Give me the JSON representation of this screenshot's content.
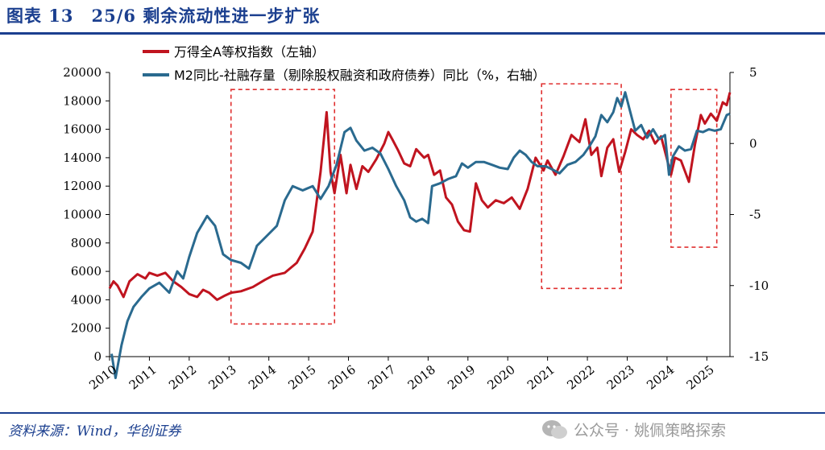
{
  "header": {
    "figure_title": "图表 13　25/6 剩余流动性进一步扩张"
  },
  "footer": {
    "source": "资料来源：Wind，华创证券",
    "watermark": "公众号 · 姚佩策略探索"
  },
  "colors": {
    "brand": "#1b3f8f",
    "wind_a": "#c0141f",
    "m2_tsf": "#2a6a8f",
    "highlight": "#e03030"
  },
  "icons": {
    "watermark_icon": "wechat-icon"
  },
  "chart_data": {
    "type": "line",
    "x_ticks": [
      "2010",
      "2011",
      "2012",
      "2013",
      "2014",
      "2015",
      "2016",
      "2017",
      "2018",
      "2019",
      "2020",
      "2021",
      "2022",
      "2023",
      "2024",
      "2025"
    ],
    "x_range": [
      2010.0,
      2025.58
    ],
    "y_left": {
      "ticks": [
        0,
        2000,
        4000,
        6000,
        8000,
        10000,
        12000,
        14000,
        16000,
        18000,
        20000
      ],
      "range": [
        0,
        20000
      ]
    },
    "y_right": {
      "ticks": [
        5,
        0,
        -5,
        -10,
        -15
      ],
      "range": [
        -15,
        5
      ]
    },
    "grid": false,
    "legend_position": "top",
    "highlight_boxes": [
      {
        "x": [
          2013.05,
          2015.65
        ],
        "y_left": [
          2300,
          18800
        ]
      },
      {
        "x": [
          2020.85,
          2022.85
        ],
        "y_left": [
          4800,
          19200
        ]
      },
      {
        "x": [
          2024.1,
          2025.25
        ],
        "y_left": [
          7700,
          18800
        ]
      }
    ],
    "series": [
      {
        "name": "万得全A等权指数（左轴）",
        "axis": "left",
        "color": "#c0141f",
        "points": [
          [
            2010.0,
            4800
          ],
          [
            2010.1,
            5300
          ],
          [
            2010.2,
            5000
          ],
          [
            2010.35,
            4200
          ],
          [
            2010.5,
            5300
          ],
          [
            2010.7,
            5800
          ],
          [
            2010.9,
            5500
          ],
          [
            2011.0,
            5900
          ],
          [
            2011.2,
            5700
          ],
          [
            2011.4,
            5900
          ],
          [
            2011.6,
            5300
          ],
          [
            2011.8,
            4900
          ],
          [
            2012.0,
            4400
          ],
          [
            2012.2,
            4200
          ],
          [
            2012.35,
            4700
          ],
          [
            2012.5,
            4500
          ],
          [
            2012.7,
            4000
          ],
          [
            2012.9,
            4300
          ],
          [
            2013.05,
            4500
          ],
          [
            2013.3,
            4600
          ],
          [
            2013.6,
            4900
          ],
          [
            2013.9,
            5400
          ],
          [
            2014.1,
            5700
          ],
          [
            2014.4,
            5900
          ],
          [
            2014.7,
            6600
          ],
          [
            2014.9,
            7600
          ],
          [
            2015.1,
            8800
          ],
          [
            2015.3,
            13000
          ],
          [
            2015.45,
            17200
          ],
          [
            2015.55,
            13000
          ],
          [
            2015.65,
            11500
          ],
          [
            2015.8,
            14200
          ],
          [
            2015.95,
            11500
          ],
          [
            2016.05,
            13500
          ],
          [
            2016.2,
            11800
          ],
          [
            2016.35,
            13400
          ],
          [
            2016.5,
            13000
          ],
          [
            2016.7,
            13900
          ],
          [
            2016.9,
            15000
          ],
          [
            2017.0,
            15800
          ],
          [
            2017.1,
            15300
          ],
          [
            2017.25,
            14500
          ],
          [
            2017.4,
            13600
          ],
          [
            2017.55,
            13400
          ],
          [
            2017.7,
            14600
          ],
          [
            2017.9,
            14000
          ],
          [
            2018.0,
            14200
          ],
          [
            2018.15,
            12800
          ],
          [
            2018.3,
            13100
          ],
          [
            2018.45,
            11200
          ],
          [
            2018.6,
            10700
          ],
          [
            2018.75,
            9500
          ],
          [
            2018.9,
            8900
          ],
          [
            2019.05,
            8800
          ],
          [
            2019.2,
            12200
          ],
          [
            2019.35,
            11000
          ],
          [
            2019.5,
            10500
          ],
          [
            2019.7,
            11000
          ],
          [
            2019.9,
            10800
          ],
          [
            2020.1,
            11200
          ],
          [
            2020.3,
            10400
          ],
          [
            2020.5,
            11800
          ],
          [
            2020.7,
            14000
          ],
          [
            2020.9,
            13100
          ],
          [
            2021.0,
            13800
          ],
          [
            2021.2,
            12800
          ],
          [
            2021.4,
            14100
          ],
          [
            2021.6,
            15600
          ],
          [
            2021.8,
            15100
          ],
          [
            2021.95,
            16700
          ],
          [
            2022.1,
            14200
          ],
          [
            2022.25,
            14700
          ],
          [
            2022.35,
            12700
          ],
          [
            2022.5,
            14700
          ],
          [
            2022.65,
            15300
          ],
          [
            2022.8,
            13000
          ],
          [
            2022.95,
            14400
          ],
          [
            2023.1,
            16000
          ],
          [
            2023.25,
            15600
          ],
          [
            2023.4,
            15300
          ],
          [
            2023.55,
            15900
          ],
          [
            2023.7,
            15000
          ],
          [
            2023.85,
            15500
          ],
          [
            2024.0,
            13900
          ],
          [
            2024.1,
            12800
          ],
          [
            2024.2,
            14000
          ],
          [
            2024.35,
            13800
          ],
          [
            2024.55,
            12300
          ],
          [
            2024.7,
            14900
          ],
          [
            2024.85,
            17000
          ],
          [
            2024.95,
            16400
          ],
          [
            2025.1,
            17100
          ],
          [
            2025.25,
            16600
          ],
          [
            2025.4,
            17900
          ],
          [
            2025.5,
            17700
          ],
          [
            2025.58,
            18600
          ]
        ]
      },
      {
        "name": "M2同比-社融存量（剔除股权融资和政府债券）同比（%，右轴）",
        "axis": "right",
        "color": "#2a6a8f",
        "points": [
          [
            2010.05,
            -14.8
          ],
          [
            2010.15,
            -16.5
          ],
          [
            2010.3,
            -14.2
          ],
          [
            2010.45,
            -12.5
          ],
          [
            2010.6,
            -11.5
          ],
          [
            2010.8,
            -10.8
          ],
          [
            2011.0,
            -10.2
          ],
          [
            2011.25,
            -9.8
          ],
          [
            2011.5,
            -10.5
          ],
          [
            2011.7,
            -9.0
          ],
          [
            2011.85,
            -9.5
          ],
          [
            2012.0,
            -8.0
          ],
          [
            2012.2,
            -6.3
          ],
          [
            2012.45,
            -5.1
          ],
          [
            2012.65,
            -5.8
          ],
          [
            2012.85,
            -7.8
          ],
          [
            2013.05,
            -8.2
          ],
          [
            2013.3,
            -8.4
          ],
          [
            2013.5,
            -8.8
          ],
          [
            2013.7,
            -7.2
          ],
          [
            2013.95,
            -6.5
          ],
          [
            2014.2,
            -5.8
          ],
          [
            2014.4,
            -4.0
          ],
          [
            2014.6,
            -3.0
          ],
          [
            2014.85,
            -3.3
          ],
          [
            2015.1,
            -3.0
          ],
          [
            2015.3,
            -3.9
          ],
          [
            2015.5,
            -3.0
          ],
          [
            2015.7,
            -1.5
          ],
          [
            2015.9,
            0.8
          ],
          [
            2016.05,
            1.1
          ],
          [
            2016.2,
            0.2
          ],
          [
            2016.4,
            -0.5
          ],
          [
            2016.6,
            -0.3
          ],
          [
            2016.8,
            -0.7
          ],
          [
            2017.0,
            -1.8
          ],
          [
            2017.2,
            -3.0
          ],
          [
            2017.4,
            -4.0
          ],
          [
            2017.55,
            -5.2
          ],
          [
            2017.7,
            -5.5
          ],
          [
            2017.85,
            -5.3
          ],
          [
            2018.0,
            -5.6
          ],
          [
            2018.1,
            -3.0
          ],
          [
            2018.3,
            -2.8
          ],
          [
            2018.5,
            -2.5
          ],
          [
            2018.7,
            -2.3
          ],
          [
            2018.85,
            -1.4
          ],
          [
            2019.0,
            -1.7
          ],
          [
            2019.2,
            -1.3
          ],
          [
            2019.4,
            -1.3
          ],
          [
            2019.6,
            -1.5
          ],
          [
            2019.8,
            -1.7
          ],
          [
            2020.0,
            -1.8
          ],
          [
            2020.15,
            -1.0
          ],
          [
            2020.3,
            -0.5
          ],
          [
            2020.45,
            -0.8
          ],
          [
            2020.6,
            -1.3
          ],
          [
            2020.75,
            -1.6
          ],
          [
            2020.95,
            -1.6
          ],
          [
            2021.1,
            -1.8
          ],
          [
            2021.3,
            -2.1
          ],
          [
            2021.5,
            -1.5
          ],
          [
            2021.7,
            -1.3
          ],
          [
            2021.9,
            -0.8
          ],
          [
            2022.05,
            -0.2
          ],
          [
            2022.2,
            0.5
          ],
          [
            2022.35,
            2.0
          ],
          [
            2022.5,
            1.5
          ],
          [
            2022.65,
            2.2
          ],
          [
            2022.75,
            3.2
          ],
          [
            2022.85,
            2.6
          ],
          [
            2022.95,
            3.6
          ],
          [
            2023.05,
            2.5
          ],
          [
            2023.2,
            0.9
          ],
          [
            2023.35,
            1.3
          ],
          [
            2023.5,
            0.4
          ],
          [
            2023.65,
            1.0
          ],
          [
            2023.8,
            0.3
          ],
          [
            2023.95,
            0.6
          ],
          [
            2024.05,
            -2.2
          ],
          [
            2024.15,
            -0.9
          ],
          [
            2024.3,
            -0.2
          ],
          [
            2024.45,
            -0.5
          ],
          [
            2024.6,
            -0.4
          ],
          [
            2024.75,
            0.9
          ],
          [
            2024.9,
            0.8
          ],
          [
            2025.05,
            1.0
          ],
          [
            2025.2,
            0.9
          ],
          [
            2025.35,
            1.0
          ],
          [
            2025.5,
            2.0
          ],
          [
            2025.58,
            2.1
          ]
        ]
      }
    ]
  }
}
